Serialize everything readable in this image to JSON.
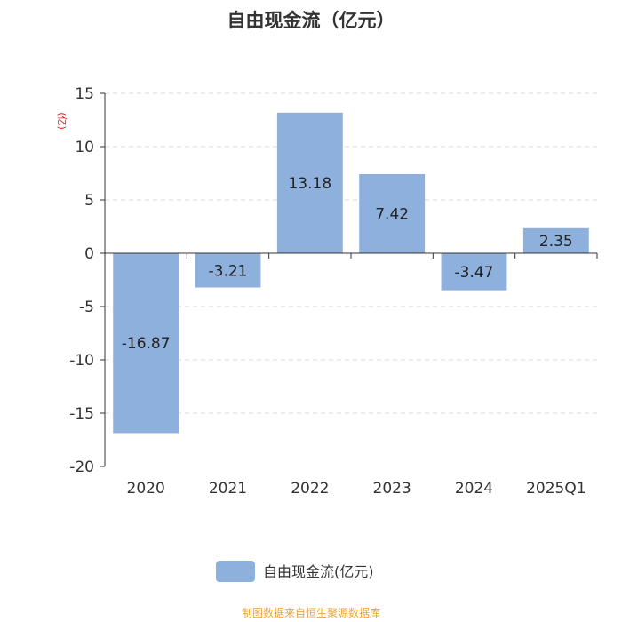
{
  "chart_data": {
    "type": "bar",
    "title": "自由现金流（亿元）",
    "unit_label": "(亿)",
    "categories": [
      "2020",
      "2021",
      "2022",
      "2023",
      "2024",
      "2025Q1"
    ],
    "series": [
      {
        "name": "自由现金流(亿元)",
        "values": [
          -16.87,
          -3.21,
          13.18,
          7.42,
          -3.47,
          2.35
        ]
      }
    ],
    "data_labels": [
      "-16.87",
      "-3.21",
      "13.18",
      "7.42",
      "-3.47",
      "2.35"
    ],
    "ylim": [
      -20,
      15
    ],
    "yticks": [
      15,
      10,
      5,
      0,
      -5,
      -10,
      -15,
      -20
    ],
    "grid": true,
    "legend_position": "bottom",
    "colors": {
      "bar": "#8eb0dc",
      "unit": "#e8170d",
      "source": "#e8a33d",
      "grid": "#d8d8d8",
      "axis": "#333333"
    }
  },
  "footer": {
    "source": "制图数据来自恒生聚源数据库"
  }
}
